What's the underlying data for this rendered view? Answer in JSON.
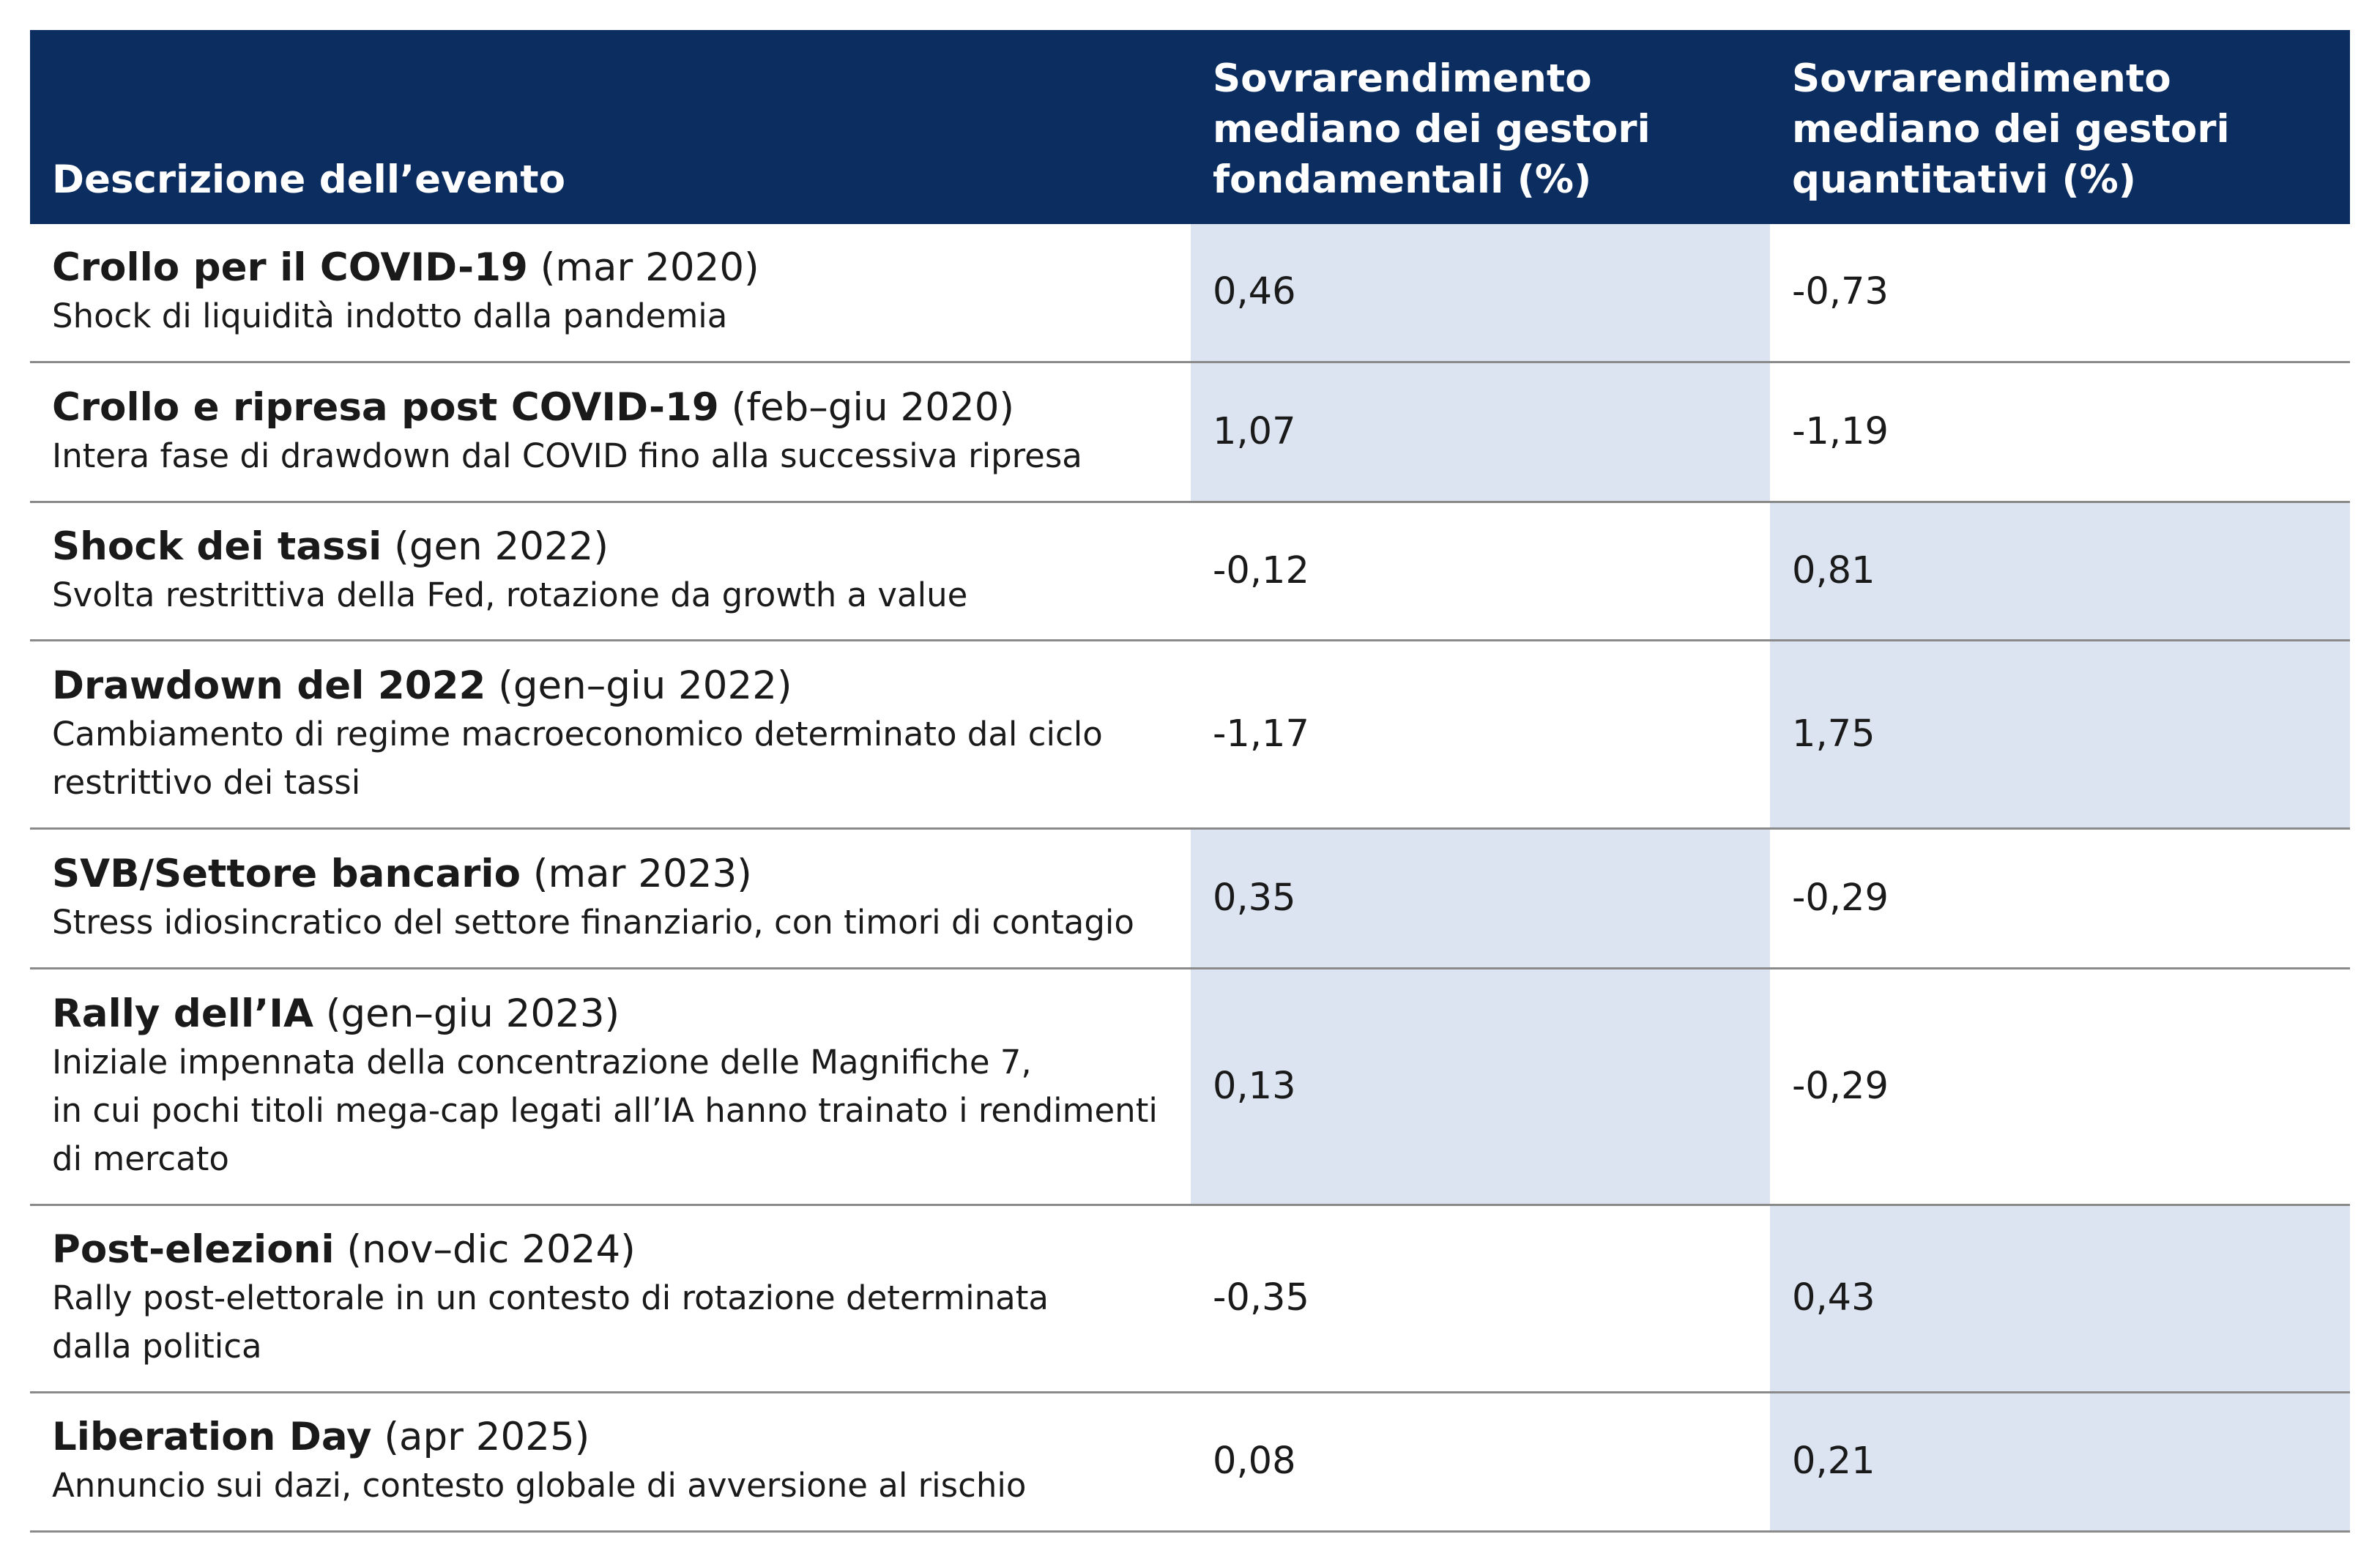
{
  "headers": {
    "description": "Descrizione dell’evento",
    "fundamental": [
      "Sovrarendimento",
      "mediano dei gestori",
      "fondamentali (%)"
    ],
    "quantitative": [
      "Sovrarendimento",
      "mediano dei gestori",
      "quantitativi (%)"
    ]
  },
  "colors": {
    "header_background": "#0c2d5f",
    "header_text": "#ffffff",
    "highlight_cell": "#dce4f1",
    "row_divider": "#8a8a8a"
  },
  "rows": [
    {
      "name": "Crollo per il COVID-19",
      "date": " (mar 2020)",
      "description": [
        "Shock di liquidità indotto dalla pandemia"
      ],
      "fundamental": "0,46",
      "quantitative": "-0,73",
      "highlight": "fundamental"
    },
    {
      "name": "Crollo e ripresa post COVID-19",
      "date": " (feb–giu 2020)",
      "description": [
        "Intera fase di drawdown dal COVID fino alla successiva ripresa"
      ],
      "fundamental": "1,07",
      "quantitative": "-1,19",
      "highlight": "fundamental"
    },
    {
      "name": "Shock dei tassi",
      "date": " (gen 2022)",
      "description": [
        "Svolta restrittiva della Fed, rotazione da growth a value"
      ],
      "fundamental": "-0,12",
      "quantitative": "0,81",
      "highlight": "quantitative"
    },
    {
      "name": "Drawdown del 2022",
      "date": " (gen–giu 2022)",
      "description": [
        "Cambiamento di regime macroeconomico determinato dal ciclo",
        "restrittivo dei tassi"
      ],
      "fundamental": "-1,17",
      "quantitative": "1,75",
      "highlight": "quantitative"
    },
    {
      "name": "SVB/Settore bancario",
      "date": " (mar 2023)",
      "description": [
        "Stress idiosincratico del settore finanziario, con timori di contagio"
      ],
      "fundamental": "0,35",
      "quantitative": "-0,29",
      "highlight": "fundamental"
    },
    {
      "name": "Rally dell’IA",
      "date": " (gen–giu 2023)",
      "description": [
        "Iniziale impennata della concentrazione delle Magnifiche 7,",
        "in cui pochi titoli mega-cap legati all’IA hanno trainato i rendimenti",
        "di mercato"
      ],
      "fundamental": "0,13",
      "quantitative": "-0,29",
      "highlight": "fundamental"
    },
    {
      "name": "Post-elezioni",
      "date": " (nov–dic 2024)",
      "description": [
        "Rally post-elettorale in un contesto di rotazione determinata",
        "dalla politica"
      ],
      "fundamental": "-0,35",
      "quantitative": "0,43",
      "highlight": "quantitative"
    },
    {
      "name": "Liberation Day",
      "date": " (apr 2025)",
      "description": [
        "Annuncio sui dazi, contesto globale di avversione al rischio"
      ],
      "fundamental": "0,08",
      "quantitative": "0,21",
      "highlight": "quantitative"
    }
  ]
}
